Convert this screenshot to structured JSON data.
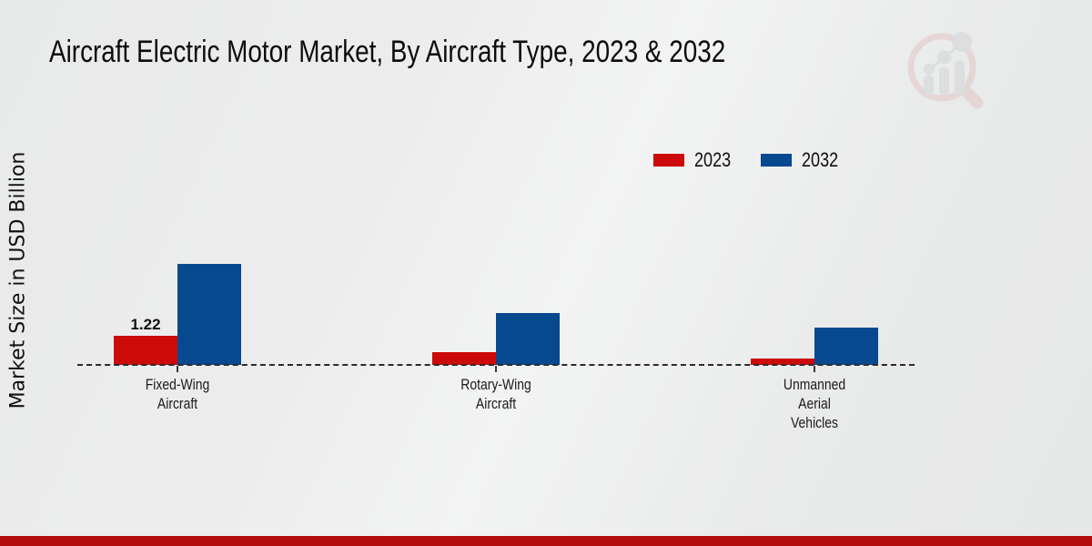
{
  "page": {
    "title": "Aircraft Electric Motor Market, By Aircraft Type, 2023 & 2032",
    "footer_accent_color": "#b30d0d",
    "watermark": {
      "icon": "magnifier-bar-chart-logo",
      "ring_color": "#e3c6c6",
      "bars_color": "#d2d4d7"
    }
  },
  "chart_data": {
    "type": "bar",
    "title": "Aircraft Electric Motor Market, By Aircraft Type, 2023 & 2032",
    "xlabel": "",
    "ylabel": "Market Size in USD Billion",
    "categories": [
      "Fixed-Wing Aircraft",
      "Rotary-Wing Aircraft",
      "Unmanned Aerial Vehicles"
    ],
    "category_lines": [
      [
        "Fixed-Wing",
        "Aircraft"
      ],
      [
        "Rotary-Wing",
        "Aircraft"
      ],
      [
        "Unmanned",
        "Aerial",
        "Vehicles"
      ]
    ],
    "series": [
      {
        "name": "2023",
        "color": "#cc0a0a",
        "values": [
          1.22,
          0.53,
          0.25
        ]
      },
      {
        "name": "2032",
        "color": "#07498e",
        "values": [
          4.23,
          2.18,
          1.55
        ]
      }
    ],
    "value_labels": [
      {
        "series": "2023",
        "category": "Fixed-Wing Aircraft",
        "text": "1.22"
      }
    ],
    "ylim": [
      0,
      4.6
    ],
    "grid": false,
    "baseline_style": "dashed",
    "legend_position": "top-right"
  }
}
